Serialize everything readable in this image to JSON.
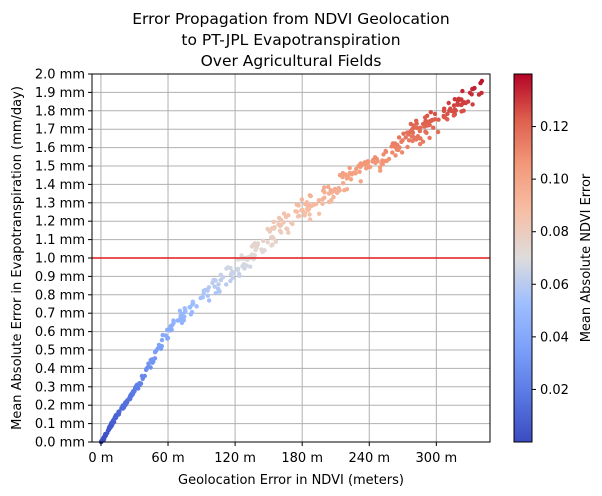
{
  "chart_data": {
    "type": "scatter",
    "title_lines": [
      "Error Propagation from NDVI Geolocation",
      "to PT-JPL Evapotranspiration",
      "Over Agricultural Fields"
    ],
    "xlabel": "Geolocation Error in NDVI (meters)",
    "ylabel": "Mean Absolute Error in Evapotranspiration (mm/day)",
    "xlim": [
      -8,
      348
    ],
    "ylim": [
      0,
      2.0
    ],
    "x_ticks": [
      0,
      60,
      120,
      180,
      240,
      300
    ],
    "x_tick_labels": [
      "0 m",
      "60 m",
      "120 m",
      "180 m",
      "240 m",
      "300 m"
    ],
    "y_ticks": [
      0,
      0.1,
      0.2,
      0.3,
      0.4,
      0.5,
      0.6,
      0.7,
      0.8,
      0.9,
      1.0,
      1.1,
      1.2,
      1.3,
      1.4,
      1.5,
      1.6,
      1.7,
      1.8,
      1.9,
      2.0
    ],
    "y_tick_labels": [
      "0.0 mm",
      "0.1 mm",
      "0.2 mm",
      "0.3 mm",
      "0.4 mm",
      "0.5 mm",
      "0.6 mm",
      "0.7 mm",
      "0.8 mm",
      "0.9 mm",
      "1.0 mm",
      "1.1 mm",
      "1.2 mm",
      "1.3 mm",
      "1.4 mm",
      "1.5 mm",
      "1.6 mm",
      "1.7 mm",
      "1.8 mm",
      "1.9 mm",
      "2.0 mm"
    ],
    "grid": true,
    "reference_line": {
      "y": 1.0,
      "color": "#e41a1c"
    },
    "colorbar": {
      "label": "Mean Absolute NDVI Error",
      "cmap": "coolwarm",
      "range": [
        0.0,
        0.14
      ],
      "ticks": [
        0.02,
        0.04,
        0.06,
        0.08,
        0.1,
        0.12
      ],
      "tick_labels": [
        "0.02",
        "0.04",
        "0.06",
        "0.08",
        "0.10",
        "0.12"
      ]
    },
    "point_count": 500,
    "points": [
      [
        0.0,
        0.0
      ],
      [
        3.5,
        0.04
      ],
      [
        7.5,
        0.08
      ],
      [
        11.0,
        0.12
      ],
      [
        15.0,
        0.16
      ],
      [
        20.0,
        0.2
      ],
      [
        25.0,
        0.24
      ],
      [
        30.0,
        0.29
      ],
      [
        33.0,
        0.32
      ],
      [
        40.0,
        0.4
      ],
      [
        45.0,
        0.46
      ],
      [
        50.0,
        0.52
      ],
      [
        55.0,
        0.58
      ],
      [
        62.0,
        0.64
      ],
      [
        70.0,
        0.7
      ],
      [
        80.0,
        0.76
      ],
      [
        90.0,
        0.82
      ],
      [
        100.0,
        0.87
      ],
      [
        110.0,
        0.92
      ],
      [
        120.0,
        0.98
      ],
      [
        130.0,
        1.04
      ],
      [
        140.0,
        1.1
      ],
      [
        150.0,
        1.16
      ],
      [
        160.0,
        1.22
      ],
      [
        180.0,
        1.3
      ],
      [
        200.0,
        1.38
      ],
      [
        220.0,
        1.47
      ],
      [
        240.0,
        1.55
      ],
      [
        260.0,
        1.63
      ],
      [
        280.0,
        1.72
      ],
      [
        300.0,
        1.8
      ],
      [
        320.0,
        1.88
      ],
      [
        335.0,
        1.95
      ],
      [
        340.0,
        1.98
      ]
    ]
  }
}
